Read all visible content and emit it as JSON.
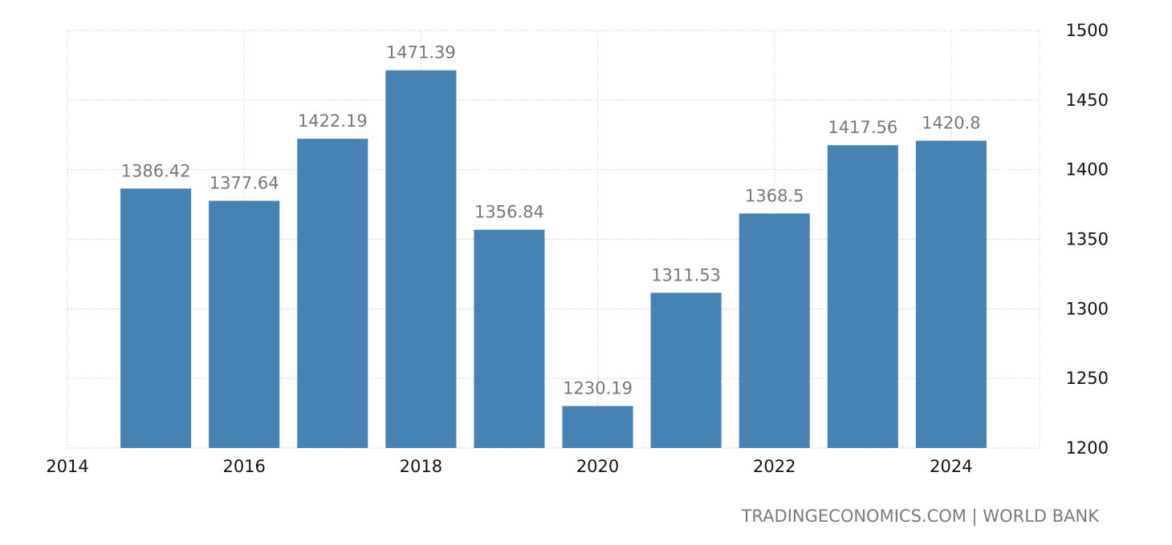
{
  "chart_data": {
    "type": "bar",
    "x": [
      2015,
      2016,
      2017,
      2018,
      2019,
      2020,
      2021,
      2022,
      2023,
      2024
    ],
    "values": [
      1386.42,
      1377.64,
      1422.19,
      1471.39,
      1356.84,
      1230.19,
      1311.53,
      1368.5,
      1417.56,
      1420.8
    ],
    "data_labels": [
      "1386.42",
      "1377.64",
      "1422.19",
      "1471.39",
      "1356.84",
      "1230.19",
      "1311.53",
      "1368.5",
      "1417.56",
      "1420.8"
    ],
    "x_ticks": [
      "2014",
      "2016",
      "2018",
      "2020",
      "2022",
      "2024"
    ],
    "y_ticks": [
      "1200",
      "1250",
      "1300",
      "1350",
      "1400",
      "1450",
      "1500"
    ],
    "xlim": [
      2014,
      2025
    ],
    "ylim": [
      1200,
      1500
    ],
    "bar_color": "#4682b4",
    "label_color": "#777777",
    "grid": true,
    "y_axis_position": "right",
    "source": "TRADINGECONOMICS.COM | WORLD BANK"
  }
}
